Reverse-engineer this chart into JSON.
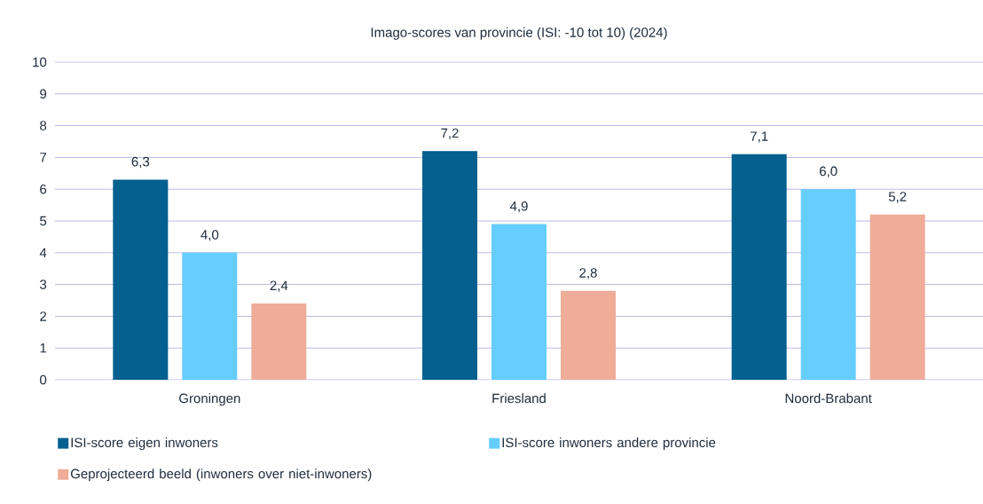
{
  "chart_data": {
    "type": "bar",
    "title": "Imago-scores van provincie (ISI: -10 tot 10) (2024)",
    "categories": [
      "Groningen",
      "Friesland",
      "Noord-Brabant"
    ],
    "series": [
      {
        "name": "ISI-score eigen inwoners",
        "color": "#03608f",
        "values": [
          6.3,
          7.2,
          7.1
        ],
        "value_labels": [
          "6,3",
          "7,2",
          "7,1"
        ]
      },
      {
        "name": "ISI-score inwoners andere provincie",
        "color": "#66cdff",
        "values": [
          4.0,
          4.9,
          6.0
        ],
        "value_labels": [
          "4,0",
          "4,9",
          "6,0"
        ]
      },
      {
        "name": "Geprojecteerd beeld (inwoners over niet-inwoners)",
        "color": "#efac99",
        "values": [
          2.4,
          2.8,
          5.2
        ],
        "value_labels": [
          "2,4",
          "2,8",
          "5,2"
        ]
      }
    ],
    "ylim": [
      0,
      10
    ],
    "yticks": [
      0,
      1,
      2,
      3,
      4,
      5,
      6,
      7,
      8,
      9,
      10
    ],
    "grid": "y",
    "legend": "bottom"
  }
}
